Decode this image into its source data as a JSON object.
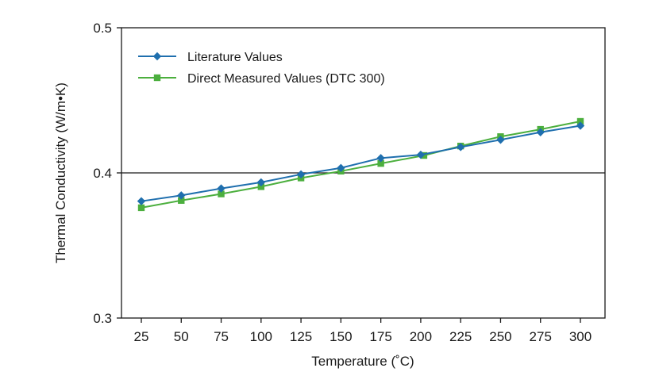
{
  "chart_data": {
    "type": "line",
    "xlabel": "Temperature (˚C)",
    "ylabel": "Thermal Conductivity (W/m•K)",
    "x": [
      25,
      50,
      75,
      100,
      125,
      150,
      175,
      200,
      225,
      250,
      275,
      300
    ],
    "x_ticks": [
      "25",
      "50",
      "75",
      "100",
      "125",
      "150",
      "175",
      "200",
      "225",
      "250",
      "275",
      "300"
    ],
    "ylim": [
      0.3,
      0.5
    ],
    "y_ticks": [
      "0.3",
      "0.4",
      "0.5"
    ],
    "grid": "horizontal line at 0.4",
    "legend_position": "top-left",
    "series": [
      {
        "name": "Literature Values",
        "color": "#1f6fae",
        "marker": "diamond",
        "x": [
          25,
          50,
          75,
          100,
          125,
          150,
          175,
          200,
          225,
          250,
          275,
          300
        ],
        "values": [
          0.3805,
          0.3845,
          0.3893,
          0.3935,
          0.399,
          0.4034,
          0.4102,
          0.4125,
          0.4178,
          0.4228,
          0.428,
          0.4325
        ]
      },
      {
        "name": "Direct Measured Values (DTC 300)",
        "color": "#4caf3e",
        "marker": "square",
        "x": [
          25,
          50,
          75,
          100,
          125,
          150,
          175,
          202,
          225,
          250,
          275,
          300
        ],
        "values": [
          0.376,
          0.381,
          0.3855,
          0.3905,
          0.3965,
          0.4012,
          0.4065,
          0.412,
          0.4185,
          0.425,
          0.43,
          0.4355
        ]
      }
    ]
  }
}
